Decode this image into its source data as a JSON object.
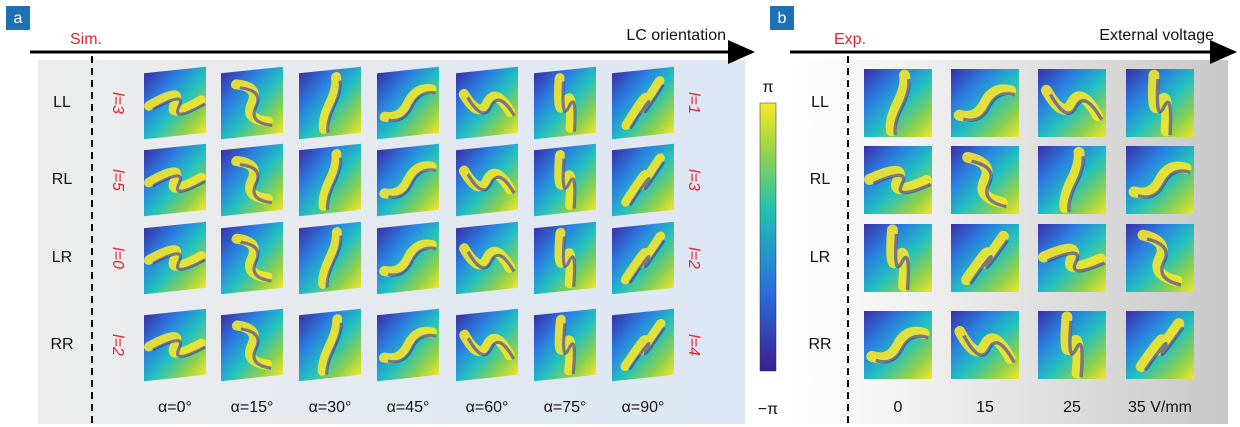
{
  "panel_a": {
    "label": "a",
    "left_label": "Sim.",
    "axis_label": "LC orientation",
    "rows": [
      {
        "name": "LL",
        "left": "l=3",
        "right": "l=1"
      },
      {
        "name": "RL",
        "left": "l=5",
        "right": "l=3"
      },
      {
        "name": "LR",
        "left": "l=0",
        "right": "l=2"
      },
      {
        "name": "RR",
        "left": "l=2",
        "right": "l=4"
      }
    ],
    "columns": [
      "α=0°",
      "α=15°",
      "α=30°",
      "α=45°",
      "α=60°",
      "α=75°",
      "α=90°"
    ]
  },
  "colorbar": {
    "top": "π",
    "bottom": "−π"
  },
  "panel_b": {
    "label": "b",
    "left_label": "Exp.",
    "axis_label": "External voltage",
    "rows": [
      "LL",
      "RL",
      "LR",
      "RR"
    ],
    "columns": [
      "0",
      "15",
      "25",
      "35 V/mm"
    ]
  }
}
